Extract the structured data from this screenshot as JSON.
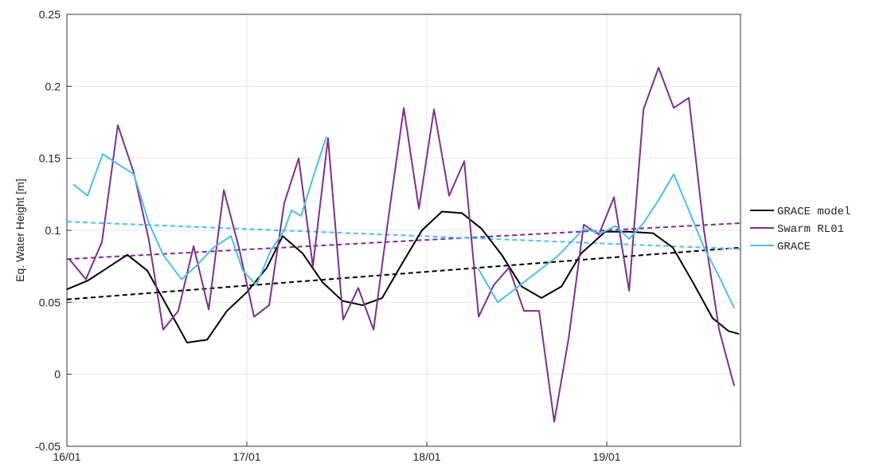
{
  "chart_data": {
    "type": "line",
    "ylabel": "Eq. Water Height [m]",
    "xlim": [
      16,
      19.743
    ],
    "ylim": [
      -0.05,
      0.25
    ],
    "xticks": [
      {
        "value": 16,
        "label": "16/01"
      },
      {
        "value": 17,
        "label": "17/01"
      },
      {
        "value": 18,
        "label": "18/01"
      },
      {
        "value": 19,
        "label": "19/01"
      }
    ],
    "yticks": [
      -0.05,
      0,
      0.05,
      0.1,
      0.15,
      0.2,
      0.25
    ],
    "grid": true,
    "legend": "right-outside",
    "series": [
      {
        "name": "GRACE model",
        "color": "#000000",
        "trend": [
          0.052,
          0.088
        ],
        "x": [
          16,
          16.115,
          16.226,
          16.336,
          16.447,
          16.558,
          16.668,
          16.779,
          16.889,
          17,
          17.111,
          17.199,
          17.31,
          17.42,
          17.531,
          17.642,
          17.752,
          17.863,
          17.973,
          18.084,
          18.195,
          18.305,
          18.416,
          18.527,
          18.637,
          18.748,
          18.858,
          18.991,
          19.124,
          19.257,
          19.367,
          19.478,
          19.588,
          19.677,
          19.735
        ],
        "values": [
          0.059,
          0.065,
          0.074,
          0.083,
          0.072,
          0.047,
          0.022,
          0.024,
          0.044,
          0.057,
          0.074,
          0.096,
          0.084,
          0.064,
          0.051,
          0.048,
          0.053,
          0.077,
          0.1,
          0.113,
          0.112,
          0.101,
          0.083,
          0.061,
          0.053,
          0.061,
          0.084,
          0.099,
          0.099,
          0.098,
          0.088,
          0.064,
          0.039,
          0.03,
          0.028
        ]
      },
      {
        "name": "Swarm RL01",
        "color": "#7e2f8e",
        "trend": [
          0.08,
          0.105
        ],
        "x": [
          16.013,
          16.106,
          16.195,
          16.283,
          16.372,
          16.456,
          16.535,
          16.619,
          16.704,
          16.788,
          16.872,
          16.956,
          17.04,
          17.124,
          17.208,
          17.288,
          17.367,
          17.451,
          17.535,
          17.619,
          17.704,
          17.788,
          17.872,
          17.956,
          18.04,
          18.124,
          18.208,
          18.288,
          18.372,
          18.456,
          18.54,
          18.624,
          18.708,
          18.788,
          18.872,
          18.956,
          19.04,
          19.124,
          19.204,
          19.288,
          19.372,
          19.456,
          19.54,
          19.624,
          19.708
        ],
        "values": [
          0.08,
          0.066,
          0.092,
          0.173,
          0.14,
          0.093,
          0.031,
          0.044,
          0.089,
          0.045,
          0.128,
          0.088,
          0.04,
          0.048,
          0.119,
          0.15,
          0.075,
          0.164,
          0.038,
          0.06,
          0.031,
          0.11,
          0.185,
          0.115,
          0.184,
          0.124,
          0.148,
          0.04,
          0.062,
          0.074,
          0.044,
          0.044,
          -0.033,
          0.025,
          0.104,
          0.097,
          0.123,
          0.058,
          0.184,
          0.213,
          0.185,
          0.192,
          0.1,
          0.031,
          -0.008
        ]
      },
      {
        "name": "GRACE",
        "color": "#4dbeee",
        "trend": [
          0.106,
          0.087
        ],
        "x": [
          16.035,
          16.115,
          16.199,
          16.283,
          16.372,
          16.456,
          16.535,
          16.637,
          16.717,
          16.814,
          16.912,
          16.978,
          17.053,
          17.133,
          17.208,
          17.248,
          17.301,
          17.376,
          17.442,
          17.863,
          18.283,
          18.394,
          18.726,
          18.872,
          18.969,
          19.049,
          19.124,
          19.204,
          19.288,
          19.372,
          19.456,
          19.54,
          19.624,
          19.708
        ],
        "values": [
          0.132,
          0.124,
          0.153,
          0.146,
          0.139,
          0.105,
          0.083,
          0.066,
          0.075,
          0.088,
          0.096,
          0.072,
          0.062,
          0.086,
          0.1,
          0.114,
          0.11,
          0.14,
          0.165,
          null,
          0.074,
          0.05,
          0.082,
          0.101,
          0.098,
          0.103,
          0.094,
          0.105,
          0.121,
          0.139,
          0.114,
          0.088,
          0.068,
          0.046
        ]
      }
    ]
  }
}
